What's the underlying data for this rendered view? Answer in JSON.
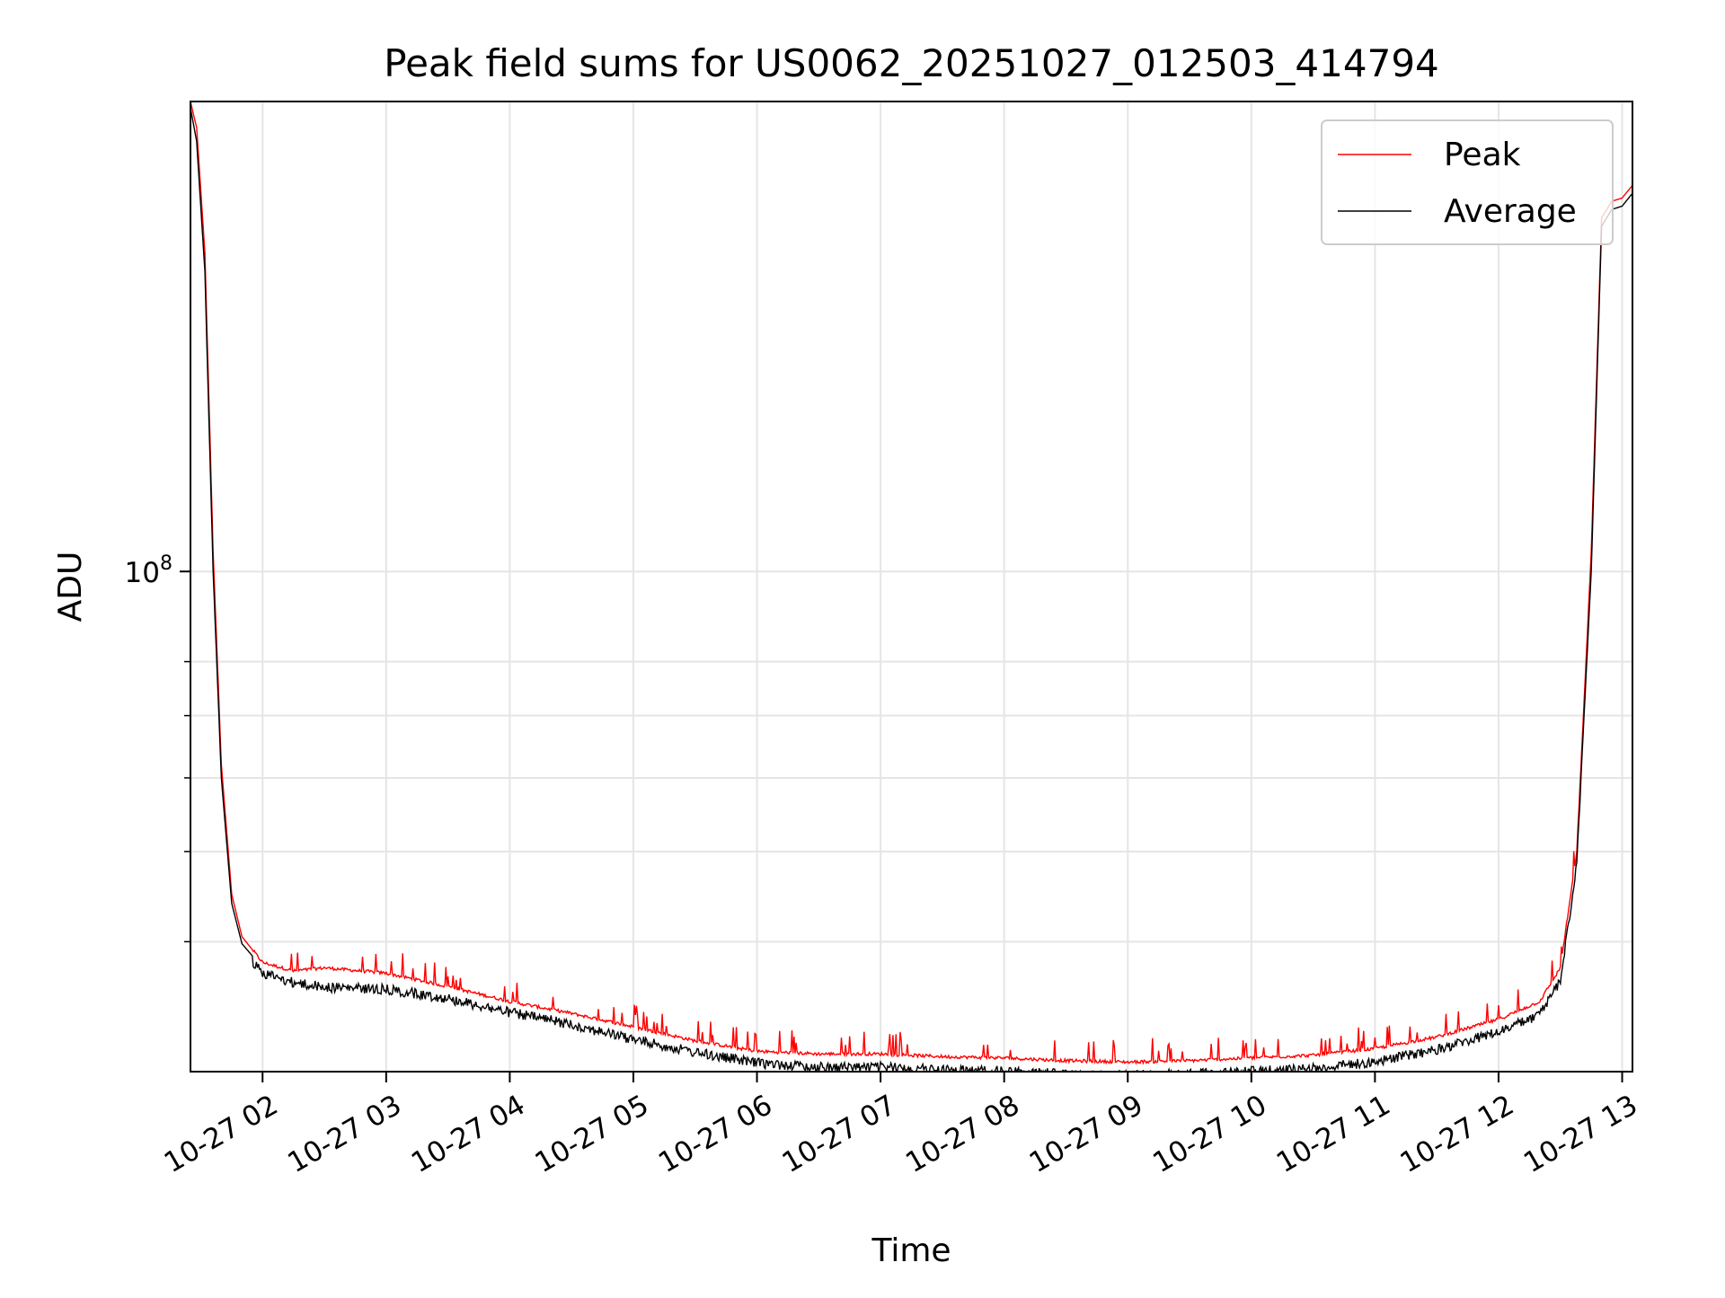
{
  "chart_data": {
    "type": "line",
    "title": "Peak field sums for US0062_20251027_012503_414794",
    "xlabel": "Time",
    "ylabel": "ADU",
    "yscale": "log",
    "ylim": [
      29000000.0,
      320000000.0
    ],
    "xlim": [
      "2025-10-27 01:25",
      "2025-10-27 13:05"
    ],
    "grid": true,
    "legend_position": "top-right",
    "x_tick_labels": [
      "10-27 02",
      "10-27 03",
      "10-27 04",
      "10-27 05",
      "10-27 06",
      "10-27 07",
      "10-27 08",
      "10-27 09",
      "10-27 10",
      "10-27 11",
      "10-27 12",
      "10-27 13"
    ],
    "x_ticks": [
      "2025-10-27 02:00",
      "2025-10-27 03:00",
      "2025-10-27 04:00",
      "2025-10-27 05:00",
      "2025-10-27 06:00",
      "2025-10-27 07:00",
      "2025-10-27 08:00",
      "2025-10-27 09:00",
      "2025-10-27 10:00",
      "2025-10-27 11:00",
      "2025-10-27 12:00",
      "2025-10-27 13:00"
    ],
    "y_ticks": [
      100000000.0
    ],
    "y_tick_labels": [
      {
        "base": "10",
        "exp": "8"
      }
    ],
    "y_minor_ticks": [
      40000000.0,
      50000000.0,
      60000000.0,
      70000000.0,
      80000000.0
    ],
    "series": [
      {
        "name": "Peak",
        "color": "#ff0000",
        "x": [
          "2025-10-27 01:25",
          "2025-10-27 01:28",
          "2025-10-27 01:32",
          "2025-10-27 01:36",
          "2025-10-27 01:40",
          "2025-10-27 01:45",
          "2025-10-27 01:50",
          "2025-10-27 02:00",
          "2025-10-27 02:15",
          "2025-10-27 02:30",
          "2025-10-27 03:00",
          "2025-10-27 03:30",
          "2025-10-27 04:00",
          "2025-10-27 04:30",
          "2025-10-27 05:00",
          "2025-10-27 05:30",
          "2025-10-27 06:00",
          "2025-10-27 06:30",
          "2025-10-27 07:00",
          "2025-10-27 07:30",
          "2025-10-27 08:00",
          "2025-10-27 08:30",
          "2025-10-27 09:00",
          "2025-10-27 09:30",
          "2025-10-27 10:00",
          "2025-10-27 10:30",
          "2025-10-27 11:00",
          "2025-10-27 11:30",
          "2025-10-27 12:00",
          "2025-10-27 12:20",
          "2025-10-27 12:30",
          "2025-10-27 12:38",
          "2025-10-27 12:45",
          "2025-10-27 12:50",
          "2025-10-27 12:55",
          "2025-10-27 13:00",
          "2025-10-27 13:05"
        ],
        "y": [
          320000000.0,
          300000000.0,
          220000000.0,
          105000000.0,
          62000000.0,
          45000000.0,
          40500000.0,
          38000000.0,
          37200000.0,
          37500000.0,
          37000000.0,
          35800000.0,
          34500000.0,
          33500000.0,
          32400000.0,
          31300000.0,
          30500000.0,
          30300000.0,
          30300000.0,
          30100000.0,
          30000000.0,
          29800000.0,
          29700000.0,
          29800000.0,
          30000000.0,
          30200000.0,
          30700000.0,
          31600000.0,
          33000000.0,
          34500000.0,
          37500000.0,
          50000000.0,
          105000000.0,
          240000000.0,
          250000000.0,
          252000000.0,
          260000000.0
        ]
      },
      {
        "name": "Average",
        "color": "#000000",
        "x": [
          "2025-10-27 01:25",
          "2025-10-27 01:28",
          "2025-10-27 01:32",
          "2025-10-27 01:36",
          "2025-10-27 01:40",
          "2025-10-27 01:45",
          "2025-10-27 01:50",
          "2025-10-27 02:00",
          "2025-10-27 02:15",
          "2025-10-27 02:30",
          "2025-10-27 03:00",
          "2025-10-27 03:30",
          "2025-10-27 04:00",
          "2025-10-27 04:30",
          "2025-10-27 05:00",
          "2025-10-27 05:30",
          "2025-10-27 06:00",
          "2025-10-27 06:30",
          "2025-10-27 07:00",
          "2025-10-27 07:30",
          "2025-10-27 08:00",
          "2025-10-27 08:30",
          "2025-10-27 09:00",
          "2025-10-27 09:30",
          "2025-10-27 10:00",
          "2025-10-27 10:30",
          "2025-10-27 11:00",
          "2025-10-27 11:30",
          "2025-10-27 12:00",
          "2025-10-27 12:20",
          "2025-10-27 12:30",
          "2025-10-27 12:38",
          "2025-10-27 12:45",
          "2025-10-27 12:50",
          "2025-10-27 12:55",
          "2025-10-27 13:00",
          "2025-10-27 13:05"
        ],
        "y": [
          315000000.0,
          290000000.0,
          210000000.0,
          100000000.0,
          60000000.0,
          44000000.0,
          39800000.0,
          37500000.0,
          36600000.0,
          36200000.0,
          36000000.0,
          35200000.0,
          34000000.0,
          33000000.0,
          31800000.0,
          30800000.0,
          30000000.0,
          29700000.0,
          29700000.0,
          29500000.0,
          29400000.0,
          29200000.0,
          29100000.0,
          29200000.0,
          29400000.0,
          29600000.0,
          30100000.0,
          31000000.0,
          32400000.0,
          33800000.0,
          36800000.0,
          49000000.0,
          100000000.0,
          235000000.0,
          245000000.0,
          247000000.0,
          255000000.0
        ]
      }
    ]
  }
}
